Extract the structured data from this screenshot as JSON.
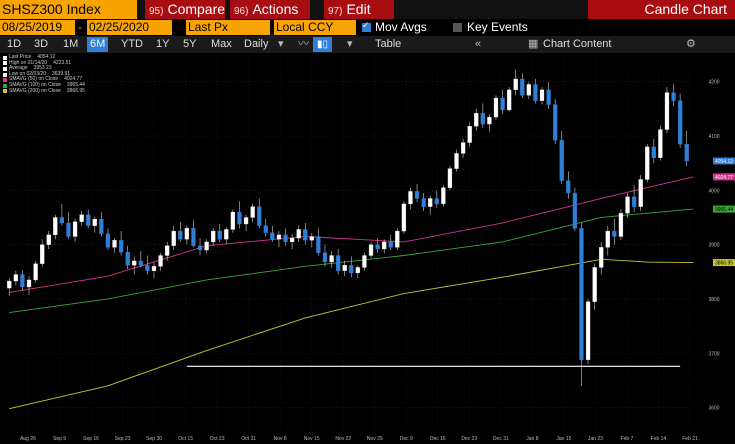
{
  "header": {
    "ticker": "SHSZ300 Index",
    "menu": [
      {
        "num": "95)",
        "label": "Compare"
      },
      {
        "num": "96)",
        "label": "Actions"
      },
      {
        "num": "97)",
        "label": "Edit"
      }
    ],
    "title": "Candle Chart"
  },
  "controls": {
    "start_date": "08/25/2019",
    "end_date": "02/25/2020",
    "field": "Last Px",
    "currency": "Local CCY",
    "mov_avgs_label": "Mov Avgs",
    "mov_avgs_checked": true,
    "key_events_label": "Key Events",
    "key_events_checked": false
  },
  "toolbar": {
    "timeframes": [
      "1D",
      "3D",
      "1M",
      "6M",
      "YTD",
      "1Y",
      "5Y",
      "Max"
    ],
    "active_timeframe": "6M",
    "frequency": "Daily",
    "table_label": "Table",
    "chart_content_label": "Chart Content"
  },
  "legend": [
    {
      "label": "Last Price",
      "value": "4054.12",
      "color": "#ffffff"
    },
    {
      "label": "High on 01/14/20",
      "value": "4223.51",
      "color": "#ffffff"
    },
    {
      "label": "Average",
      "value": "3953.23",
      "color": "#ffffff"
    },
    {
      "label": "Low on 02/03/20",
      "value": "3639.91",
      "color": "#ffffff"
    },
    {
      "label": "SMAVG (50) on Close",
      "value": "4024.77",
      "color": "#d6338f"
    },
    {
      "label": "SMAVG (100) on Close",
      "value": "3965.44",
      "color": "#3aa63a"
    },
    {
      "label": "SMAVG (200) on Close",
      "value": "3866.95",
      "color": "#c8c832"
    }
  ],
  "chart_data": {
    "type": "candlestick",
    "x_ticks": [
      "Aug 26",
      "Sep 9",
      "Sep 16",
      "Sep 23",
      "Sep 30",
      "Oct 15",
      "Oct 23",
      "Oct 31",
      "Nov 8",
      "Nov 15",
      "Nov 22",
      "Nov 29",
      "Dec 9",
      "Dec 16",
      "Dec 23",
      "Dec 31",
      "Jan 8",
      "Jan 15",
      "Jan 23",
      "Feb 7",
      "Feb 14",
      "Feb 21"
    ],
    "y_ticks": [
      3600,
      3700,
      3800,
      3900,
      4000,
      4100,
      4200
    ],
    "ylim": [
      3555,
      4240
    ],
    "up_color": "#ffffff",
    "down_color": "#2f7ed8",
    "candles": [
      {
        "o": 3820,
        "h": 3838,
        "l": 3806,
        "c": 3833
      },
      {
        "o": 3833,
        "h": 3852,
        "l": 3825,
        "c": 3845
      },
      {
        "o": 3845,
        "h": 3853,
        "l": 3815,
        "c": 3822
      },
      {
        "o": 3822,
        "h": 3842,
        "l": 3808,
        "c": 3835
      },
      {
        "o": 3835,
        "h": 3870,
        "l": 3830,
        "c": 3865
      },
      {
        "o": 3865,
        "h": 3910,
        "l": 3860,
        "c": 3900
      },
      {
        "o": 3900,
        "h": 3925,
        "l": 3892,
        "c": 3918
      },
      {
        "o": 3918,
        "h": 3955,
        "l": 3910,
        "c": 3950
      },
      {
        "o": 3950,
        "h": 3975,
        "l": 3935,
        "c": 3940
      },
      {
        "o": 3940,
        "h": 3960,
        "l": 3910,
        "c": 3915
      },
      {
        "o": 3915,
        "h": 3948,
        "l": 3905,
        "c": 3942
      },
      {
        "o": 3942,
        "h": 3962,
        "l": 3935,
        "c": 3955
      },
      {
        "o": 3955,
        "h": 3965,
        "l": 3930,
        "c": 3935
      },
      {
        "o": 3935,
        "h": 3952,
        "l": 3922,
        "c": 3947
      },
      {
        "o": 3947,
        "h": 3960,
        "l": 3915,
        "c": 3920
      },
      {
        "o": 3920,
        "h": 3930,
        "l": 3890,
        "c": 3895
      },
      {
        "o": 3895,
        "h": 3912,
        "l": 3885,
        "c": 3908
      },
      {
        "o": 3908,
        "h": 3925,
        "l": 3880,
        "c": 3886
      },
      {
        "o": 3886,
        "h": 3898,
        "l": 3855,
        "c": 3862
      },
      {
        "o": 3862,
        "h": 3878,
        "l": 3845,
        "c": 3870
      },
      {
        "o": 3870,
        "h": 3888,
        "l": 3858,
        "c": 3862
      },
      {
        "o": 3862,
        "h": 3880,
        "l": 3845,
        "c": 3852
      },
      {
        "o": 3852,
        "h": 3868,
        "l": 3838,
        "c": 3860
      },
      {
        "o": 3860,
        "h": 3885,
        "l": 3852,
        "c": 3880
      },
      {
        "o": 3880,
        "h": 3905,
        "l": 3870,
        "c": 3898
      },
      {
        "o": 3898,
        "h": 3935,
        "l": 3890,
        "c": 3925
      },
      {
        "o": 3925,
        "h": 3942,
        "l": 3905,
        "c": 3910
      },
      {
        "o": 3910,
        "h": 3935,
        "l": 3900,
        "c": 3930
      },
      {
        "o": 3930,
        "h": 3945,
        "l": 3895,
        "c": 3898
      },
      {
        "o": 3898,
        "h": 3912,
        "l": 3880,
        "c": 3890
      },
      {
        "o": 3890,
        "h": 3910,
        "l": 3885,
        "c": 3905
      },
      {
        "o": 3905,
        "h": 3930,
        "l": 3898,
        "c": 3925
      },
      {
        "o": 3925,
        "h": 3938,
        "l": 3905,
        "c": 3910
      },
      {
        "o": 3910,
        "h": 3932,
        "l": 3902,
        "c": 3928
      },
      {
        "o": 3928,
        "h": 3965,
        "l": 3922,
        "c": 3960
      },
      {
        "o": 3960,
        "h": 3980,
        "l": 3930,
        "c": 3938
      },
      {
        "o": 3938,
        "h": 3955,
        "l": 3925,
        "c": 3950
      },
      {
        "o": 3950,
        "h": 3975,
        "l": 3942,
        "c": 3970
      },
      {
        "o": 3970,
        "h": 3985,
        "l": 3930,
        "c": 3935
      },
      {
        "o": 3935,
        "h": 3948,
        "l": 3915,
        "c": 3922
      },
      {
        "o": 3922,
        "h": 3935,
        "l": 3905,
        "c": 3910
      },
      {
        "o": 3910,
        "h": 3925,
        "l": 3895,
        "c": 3918
      },
      {
        "o": 3918,
        "h": 3930,
        "l": 3898,
        "c": 3905
      },
      {
        "o": 3905,
        "h": 3920,
        "l": 3892,
        "c": 3912
      },
      {
        "o": 3912,
        "h": 3935,
        "l": 3905,
        "c": 3928
      },
      {
        "o": 3928,
        "h": 3940,
        "l": 3900,
        "c": 3908
      },
      {
        "o": 3908,
        "h": 3922,
        "l": 3895,
        "c": 3915
      },
      {
        "o": 3915,
        "h": 3930,
        "l": 3880,
        "c": 3885
      },
      {
        "o": 3885,
        "h": 3900,
        "l": 3860,
        "c": 3868
      },
      {
        "o": 3868,
        "h": 3888,
        "l": 3858,
        "c": 3880
      },
      {
        "o": 3880,
        "h": 3892,
        "l": 3845,
        "c": 3852
      },
      {
        "o": 3852,
        "h": 3870,
        "l": 3842,
        "c": 3862
      },
      {
        "o": 3862,
        "h": 3878,
        "l": 3840,
        "c": 3848
      },
      {
        "o": 3848,
        "h": 3862,
        "l": 3838,
        "c": 3858
      },
      {
        "o": 3858,
        "h": 3885,
        "l": 3852,
        "c": 3880
      },
      {
        "o": 3880,
        "h": 3905,
        "l": 3875,
        "c": 3900
      },
      {
        "o": 3900,
        "h": 3912,
        "l": 3885,
        "c": 3892
      },
      {
        "o": 3892,
        "h": 3910,
        "l": 3884,
        "c": 3905
      },
      {
        "o": 3905,
        "h": 3918,
        "l": 3890,
        "c": 3895
      },
      {
        "o": 3895,
        "h": 3930,
        "l": 3890,
        "c": 3925
      },
      {
        "o": 3925,
        "h": 3980,
        "l": 3920,
        "c": 3975
      },
      {
        "o": 3975,
        "h": 4005,
        "l": 3965,
        "c": 3998
      },
      {
        "o": 3998,
        "h": 4012,
        "l": 3978,
        "c": 3985
      },
      {
        "o": 3985,
        "h": 3995,
        "l": 3962,
        "c": 3970
      },
      {
        "o": 3970,
        "h": 3990,
        "l": 3955,
        "c": 3985
      },
      {
        "o": 3985,
        "h": 4000,
        "l": 3968,
        "c": 3975
      },
      {
        "o": 3975,
        "h": 4010,
        "l": 3970,
        "c": 4005
      },
      {
        "o": 4005,
        "h": 4045,
        "l": 4000,
        "c": 4040
      },
      {
        "o": 4040,
        "h": 4075,
        "l": 4035,
        "c": 4068
      },
      {
        "o": 4068,
        "h": 4095,
        "l": 4060,
        "c": 4088
      },
      {
        "o": 4088,
        "h": 4125,
        "l": 4080,
        "c": 4118
      },
      {
        "o": 4118,
        "h": 4150,
        "l": 4110,
        "c": 4142
      },
      {
        "o": 4142,
        "h": 4160,
        "l": 4115,
        "c": 4122
      },
      {
        "o": 4122,
        "h": 4140,
        "l": 4108,
        "c": 4135
      },
      {
        "o": 4135,
        "h": 4175,
        "l": 4130,
        "c": 4170
      },
      {
        "o": 4170,
        "h": 4185,
        "l": 4140,
        "c": 4148
      },
      {
        "o": 4148,
        "h": 4190,
        "l": 4145,
        "c": 4185
      },
      {
        "o": 4185,
        "h": 4223,
        "l": 4175,
        "c": 4205
      },
      {
        "o": 4205,
        "h": 4215,
        "l": 4170,
        "c": 4175
      },
      {
        "o": 4175,
        "h": 4200,
        "l": 4168,
        "c": 4195
      },
      {
        "o": 4195,
        "h": 4205,
        "l": 4160,
        "c": 4165
      },
      {
        "o": 4165,
        "h": 4190,
        "l": 4158,
        "c": 4185
      },
      {
        "o": 4185,
        "h": 4200,
        "l": 4150,
        "c": 4158
      },
      {
        "o": 4158,
        "h": 4168,
        "l": 4085,
        "c": 4092
      },
      {
        "o": 4092,
        "h": 4110,
        "l": 4012,
        "c": 4018
      },
      {
        "o": 4018,
        "h": 4035,
        "l": 3985,
        "c": 3995
      },
      {
        "o": 3995,
        "h": 4005,
        "l": 3925,
        "c": 3930
      },
      {
        "o": 3930,
        "h": 3940,
        "l": 3640,
        "c": 3688
      },
      {
        "o": 3688,
        "h": 3800,
        "l": 3680,
        "c": 3795
      },
      {
        "o": 3795,
        "h": 3865,
        "l": 3780,
        "c": 3858
      },
      {
        "o": 3858,
        "h": 3905,
        "l": 3845,
        "c": 3895
      },
      {
        "o": 3895,
        "h": 3935,
        "l": 3880,
        "c": 3925
      },
      {
        "o": 3925,
        "h": 3948,
        "l": 3900,
        "c": 3915
      },
      {
        "o": 3915,
        "h": 3965,
        "l": 3908,
        "c": 3958
      },
      {
        "o": 3958,
        "h": 3995,
        "l": 3950,
        "c": 3988
      },
      {
        "o": 3988,
        "h": 4010,
        "l": 3960,
        "c": 3970
      },
      {
        "o": 3970,
        "h": 4028,
        "l": 3962,
        "c": 4020
      },
      {
        "o": 4020,
        "h": 4085,
        "l": 4015,
        "c": 4080
      },
      {
        "o": 4080,
        "h": 4095,
        "l": 4050,
        "c": 4060
      },
      {
        "o": 4060,
        "h": 4120,
        "l": 4055,
        "c": 4112
      },
      {
        "o": 4112,
        "h": 4190,
        "l": 4105,
        "c": 4180
      },
      {
        "o": 4180,
        "h": 4195,
        "l": 4155,
        "c": 4165
      },
      {
        "o": 4165,
        "h": 4178,
        "l": 4078,
        "c": 4085
      },
      {
        "o": 4085,
        "h": 4110,
        "l": 4045,
        "c": 4054.12
      }
    ],
    "moving_averages": [
      {
        "name": "SMAVG (50)",
        "color": "#d6338f",
        "points": [
          [
            0,
            3812
          ],
          [
            15,
            3842
          ],
          [
            30,
            3898
          ],
          [
            45,
            3915
          ],
          [
            60,
            3905
          ],
          [
            75,
            3940
          ],
          [
            85,
            3970
          ],
          [
            90,
            3985
          ],
          [
            97,
            4005
          ],
          [
            104,
            4024.77
          ]
        ]
      },
      {
        "name": "SMAVG (100)",
        "color": "#3aa63a",
        "points": [
          [
            0,
            3775
          ],
          [
            15,
            3800
          ],
          [
            30,
            3835
          ],
          [
            45,
            3860
          ],
          [
            60,
            3880
          ],
          [
            75,
            3905
          ],
          [
            85,
            3935
          ],
          [
            90,
            3950
          ],
          [
            97,
            3958
          ],
          [
            104,
            3965.44
          ]
        ]
      },
      {
        "name": "SMAVG (200)",
        "color": "#c8c832",
        "points": [
          [
            0,
            3598
          ],
          [
            15,
            3640
          ],
          [
            30,
            3705
          ],
          [
            45,
            3765
          ],
          [
            60,
            3810
          ],
          [
            75,
            3840
          ],
          [
            85,
            3862
          ],
          [
            90,
            3873
          ],
          [
            97,
            3868
          ],
          [
            104,
            3866.95
          ]
        ]
      }
    ],
    "horizontal_line": {
      "value": 3676,
      "from_index": 27,
      "to_index": 102,
      "color": "#ffffff"
    },
    "price_labels": [
      {
        "value": 4054.12,
        "text": "4054.12",
        "bg": "#2f7ed8",
        "fg": "#ffffff"
      },
      {
        "value": 4024.77,
        "text": "4024.77",
        "bg": "#d6338f",
        "fg": "#ffffff"
      },
      {
        "value": 3965.44,
        "text": "3965.44",
        "bg": "#3aa63a",
        "fg": "#000000"
      },
      {
        "value": 3866.95,
        "text": "3866.95",
        "bg": "#c8c832",
        "fg": "#000000"
      }
    ]
  }
}
